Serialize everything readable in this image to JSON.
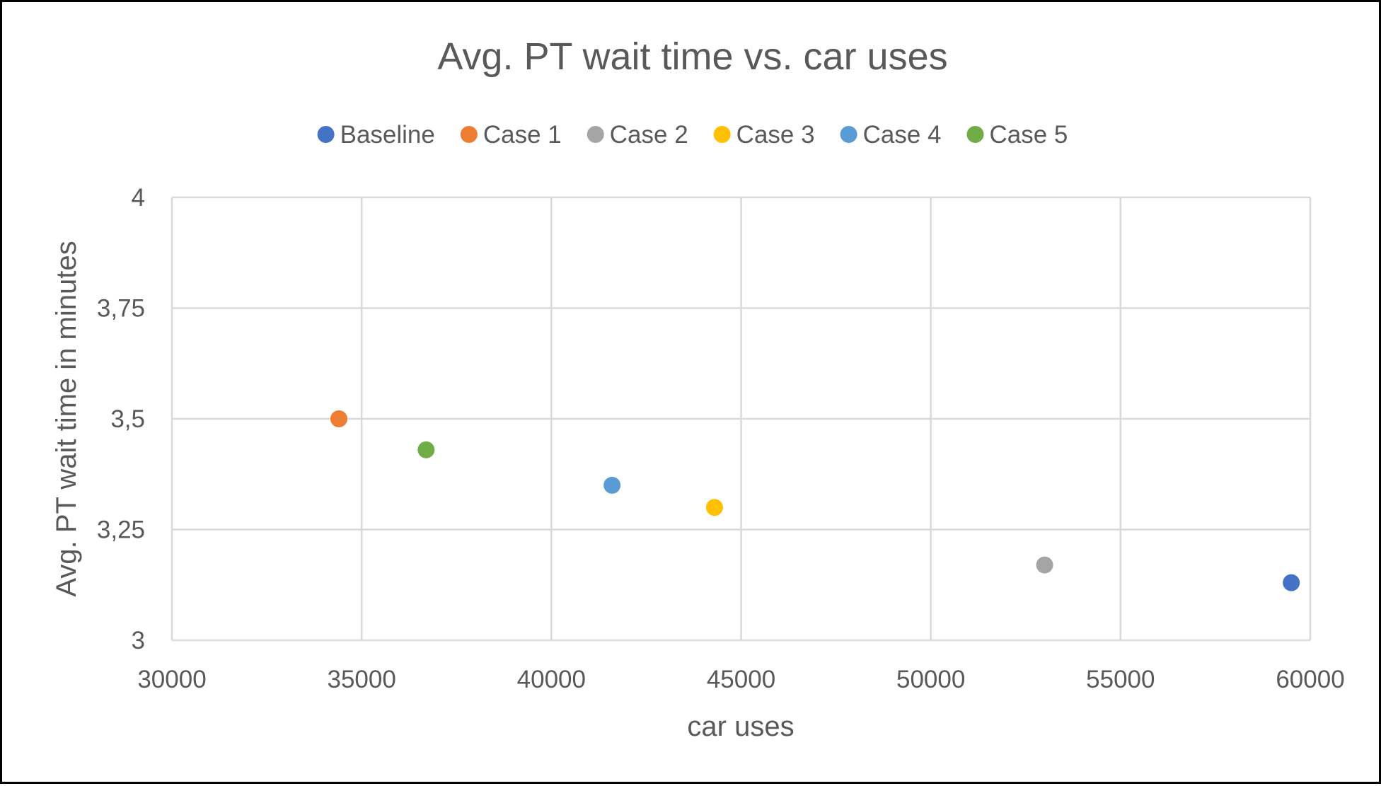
{
  "chart_data": {
    "type": "scatter",
    "title": "Avg. PT wait time vs. car uses",
    "xlabel": "car uses",
    "ylabel": "Avg. PT wait time in minutes",
    "xlim": [
      30000,
      60000
    ],
    "ylim": [
      3,
      4
    ],
    "x_ticks": [
      "30000",
      "35000",
      "40000",
      "45000",
      "50000",
      "55000",
      "60000"
    ],
    "y_ticks": [
      "3",
      "3,25",
      "3,5",
      "3,75",
      "4"
    ],
    "grid": true,
    "legend_position": "top",
    "series": [
      {
        "name": "Baseline",
        "color": "#4472C4",
        "points": [
          {
            "x": 59500,
            "y": 3.13
          }
        ]
      },
      {
        "name": "Case 1",
        "color": "#ED7D31",
        "points": [
          {
            "x": 34400,
            "y": 3.5
          }
        ]
      },
      {
        "name": "Case 2",
        "color": "#A5A5A5",
        "points": [
          {
            "x": 53000,
            "y": 3.17
          }
        ]
      },
      {
        "name": "Case 3",
        "color": "#FFC000",
        "points": [
          {
            "x": 44300,
            "y": 3.3
          }
        ]
      },
      {
        "name": "Case 4",
        "color": "#5B9BD5",
        "points": [
          {
            "x": 41600,
            "y": 3.35
          }
        ]
      },
      {
        "name": "Case 5",
        "color": "#70AD47",
        "points": [
          {
            "x": 36700,
            "y": 3.43
          }
        ]
      }
    ]
  }
}
